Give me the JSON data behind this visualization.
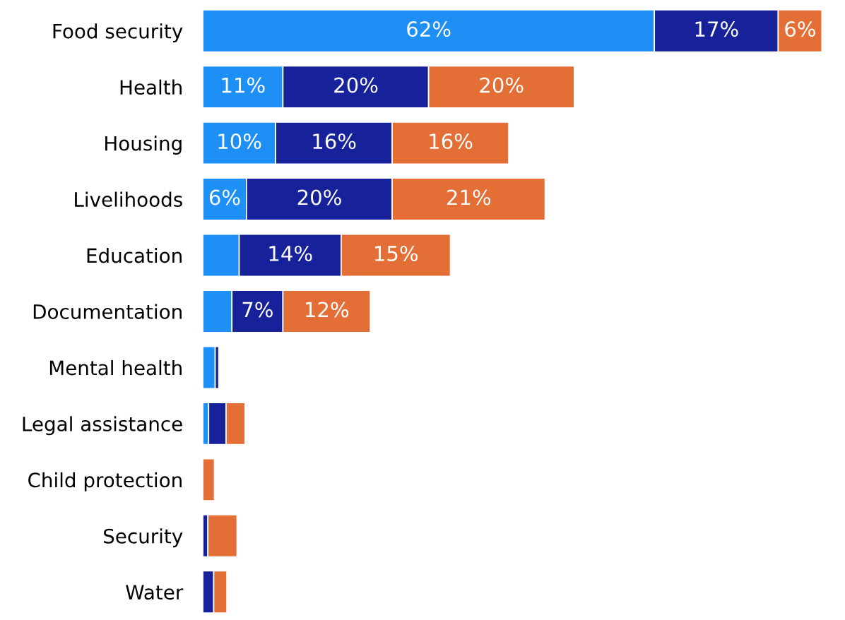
{
  "chart_data": {
    "type": "bar",
    "orientation": "horizontal",
    "stacked": true,
    "categories": [
      "Food security",
      "Health",
      "Housing",
      "Livelihoods",
      "Education",
      "Documentation",
      "Mental health",
      "Legal assistance",
      "Child protection",
      "Security",
      "Water"
    ],
    "series": [
      {
        "color": "#1e90f5",
        "values": [
          62,
          11,
          10,
          6,
          5,
          4,
          1.7,
          0.8,
          null,
          null,
          null
        ],
        "value_labels": [
          "62%",
          "11%",
          "10%",
          "6%",
          null,
          null,
          null,
          null,
          null,
          null,
          null
        ]
      },
      {
        "color": "#17229a",
        "values": [
          17,
          20,
          16,
          20,
          14,
          7,
          0.5,
          2.4,
          null,
          0.7,
          1.5
        ],
        "value_labels": [
          "17%",
          "20%",
          "16%",
          "20%",
          "14%",
          "7%",
          null,
          null,
          null,
          null,
          null
        ]
      },
      {
        "color": "#e36f36",
        "values": [
          6,
          20,
          16,
          21,
          15,
          12,
          null,
          2.6,
          1.6,
          4,
          1.8
        ],
        "value_labels": [
          "6%",
          "20%",
          "16%",
          "21%",
          "15%",
          "12%",
          null,
          null,
          null,
          null,
          null
        ]
      }
    ]
  }
}
